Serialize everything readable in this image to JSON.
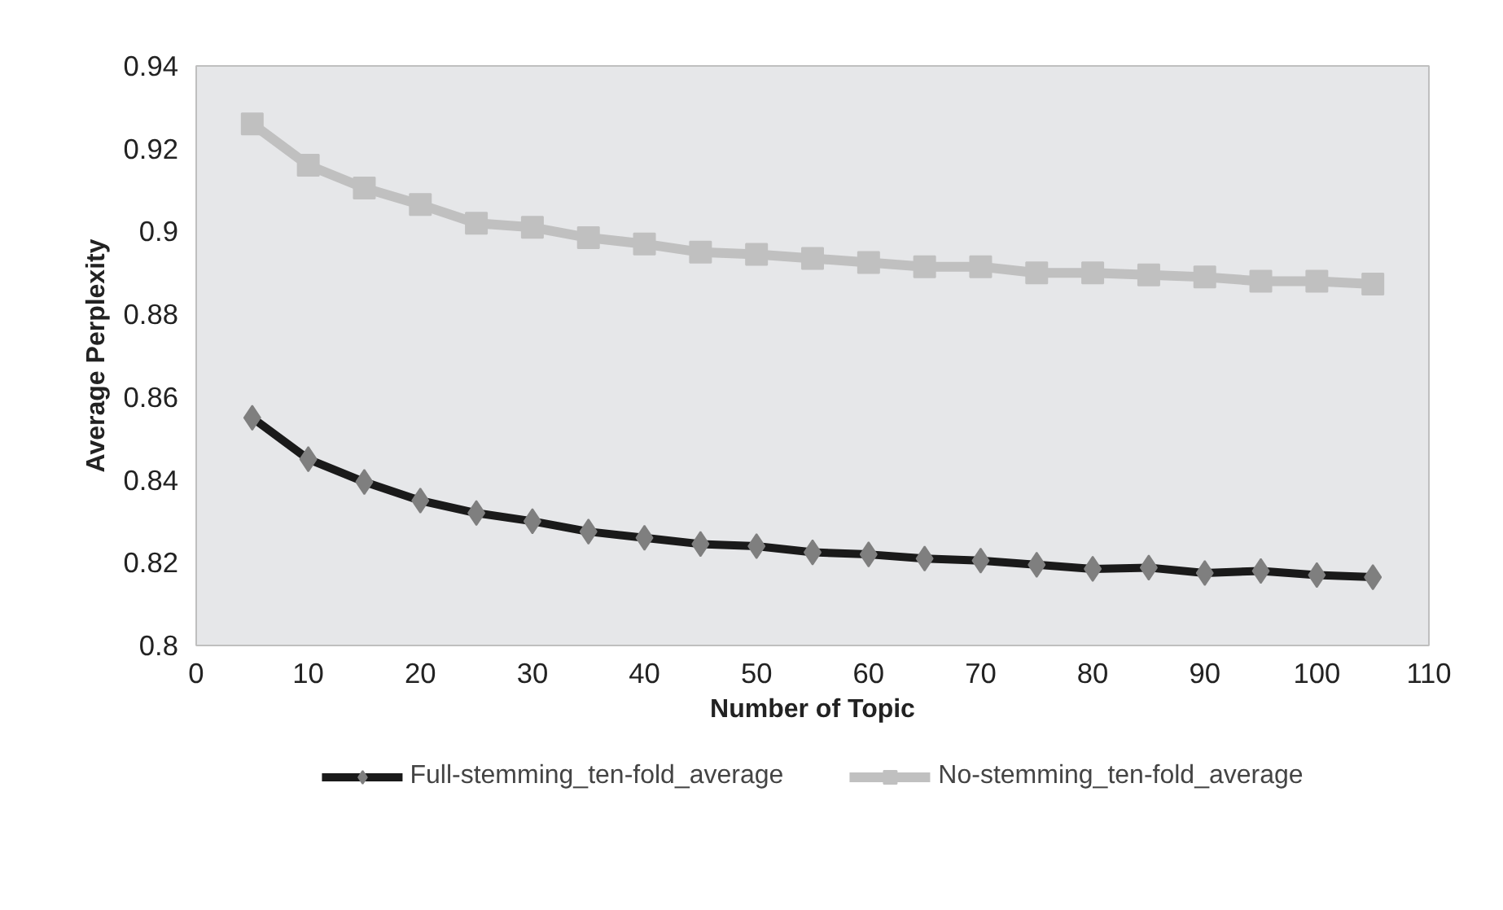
{
  "chart_data": {
    "type": "line",
    "xlabel": "Number of Topic",
    "ylabel": "Average Perplexity",
    "x": [
      5,
      10,
      15,
      20,
      25,
      30,
      35,
      40,
      45,
      50,
      55,
      60,
      65,
      70,
      75,
      80,
      85,
      90,
      95,
      100,
      105
    ],
    "series": [
      {
        "name": "Full-stemming_ten-fold_average",
        "color": "#1a1a1a",
        "marker": "diamond",
        "values": [
          0.855,
          0.845,
          0.8395,
          0.835,
          0.832,
          0.83,
          0.8275,
          0.826,
          0.8245,
          0.824,
          0.8225,
          0.822,
          0.821,
          0.8205,
          0.8195,
          0.8185,
          0.8188,
          0.8175,
          0.818,
          0.817,
          0.8165
        ]
      },
      {
        "name": "No-stemming_ten-fold_average",
        "color": "#c0c0c0",
        "marker": "square",
        "values": [
          0.926,
          0.916,
          0.9105,
          0.9065,
          0.902,
          0.901,
          0.8985,
          0.897,
          0.895,
          0.8945,
          0.8935,
          0.8925,
          0.8915,
          0.8915,
          0.89,
          0.89,
          0.8895,
          0.889,
          0.888,
          0.888,
          0.8873
        ]
      }
    ],
    "xlim": [
      0,
      110
    ],
    "xticks": [
      0,
      10,
      20,
      30,
      40,
      50,
      60,
      70,
      80,
      90,
      100,
      110
    ],
    "ylim": [
      0.8,
      0.94
    ],
    "yticks": [
      {
        "value": 0.8,
        "label": "0.8"
      },
      0.82,
      0.84,
      0.86,
      0.88,
      {
        "value": 0.9,
        "label": "0.9"
      },
      0.92,
      0.94
    ],
    "grid": false,
    "legend": "bottom",
    "line_style": "solid"
  }
}
